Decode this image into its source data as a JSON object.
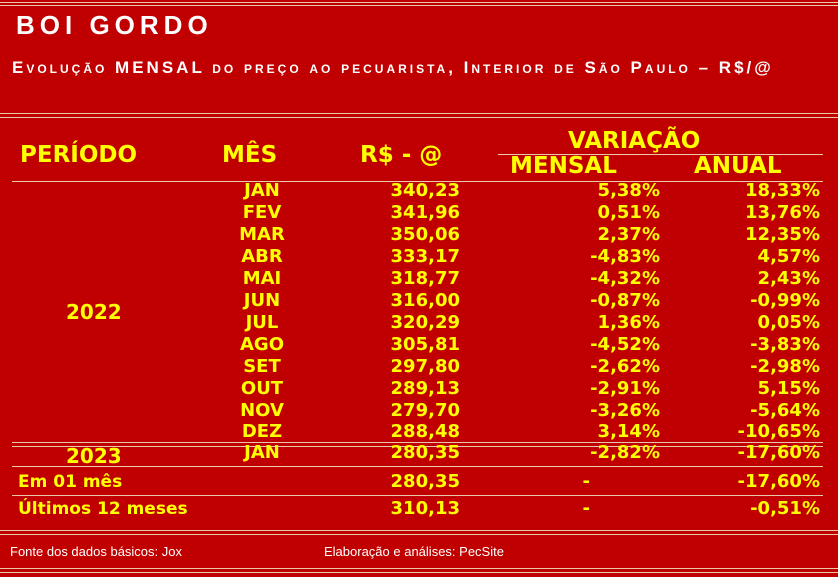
{
  "header": {
    "title": "BOI GORDO",
    "subtitle": "Evolução MENSAL do preço ao pecuarista, Interior de São Paulo – R$/@"
  },
  "table": {
    "col_periodo": "PERÍODO",
    "col_mes": "MÊS",
    "col_preco": "R$ - @",
    "col_variacao": "VARIAÇÃO",
    "col_mensal": "MENSAL",
    "col_anual": "ANUAL",
    "year_2022": "2022",
    "year_2023": "2023",
    "rows_2022": [
      {
        "mes": "JAN",
        "valor": "340,23",
        "mensal": "5,38%",
        "anual": "18,33%"
      },
      {
        "mes": "FEV",
        "valor": "341,96",
        "mensal": "0,51%",
        "anual": "13,76%"
      },
      {
        "mes": "MAR",
        "valor": "350,06",
        "mensal": "2,37%",
        "anual": "12,35%"
      },
      {
        "mes": "ABR",
        "valor": "333,17",
        "mensal": "-4,83%",
        "anual": "4,57%"
      },
      {
        "mes": "MAI",
        "valor": "318,77",
        "mensal": "-4,32%",
        "anual": "2,43%"
      },
      {
        "mes": "JUN",
        "valor": "316,00",
        "mensal": "-0,87%",
        "anual": "-0,99%"
      },
      {
        "mes": "JUL",
        "valor": "320,29",
        "mensal": "1,36%",
        "anual": "0,05%"
      },
      {
        "mes": "AGO",
        "valor": "305,81",
        "mensal": "-4,52%",
        "anual": "-3,83%"
      },
      {
        "mes": "SET",
        "valor": "297,80",
        "mensal": "-2,62%",
        "anual": "-2,98%"
      },
      {
        "mes": "OUT",
        "valor": "289,13",
        "mensal": "-2,91%",
        "anual": "5,15%"
      },
      {
        "mes": "NOV",
        "valor": "279,70",
        "mensal": "-3,26%",
        "anual": "-5,64%"
      },
      {
        "mes": "DEZ",
        "valor": "288,48",
        "mensal": "3,14%",
        "anual": "-10,65%"
      }
    ],
    "rows_2023": [
      {
        "mes": "JAN",
        "valor": "280,35",
        "mensal": "-2,82%",
        "anual": "-17,60%"
      }
    ],
    "summary": [
      {
        "label": "Em 01 mês",
        "valor": "280,35",
        "mensal": "-",
        "anual": "-17,60%"
      },
      {
        "label": "Últimos 12 meses",
        "valor": "310,13",
        "mensal": "-",
        "anual": "-0,51%"
      }
    ]
  },
  "footer": {
    "source": "Fonte dos dados básicos: Jox",
    "credit": "Elaboração e análises: PecSite"
  },
  "colors": {
    "background": "#c00000",
    "accent_text": "#ffff00",
    "title_text": "#ffffff"
  }
}
